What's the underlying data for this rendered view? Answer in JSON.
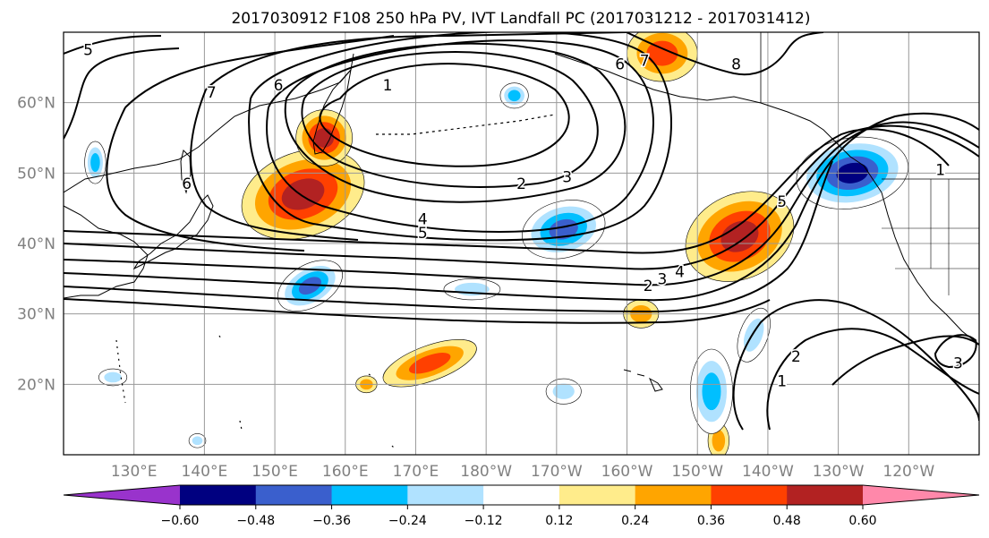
{
  "title": "2017030912 F108 250 hPa PV, IVT Landfall PC (2017031212 - 2017031412)",
  "map": {
    "lon_range": [
      120,
      250
    ],
    "lat_range": [
      10,
      70
    ],
    "lat_ticks": [
      {
        "lat": 20,
        "label": "20°N"
      },
      {
        "lat": 30,
        "label": "30°N"
      },
      {
        "lat": 40,
        "label": "40°N"
      },
      {
        "lat": 50,
        "label": "50°N"
      },
      {
        "lat": 60,
        "label": "60°N"
      }
    ],
    "lon_ticks": [
      {
        "lon": 130,
        "label": "130°E"
      },
      {
        "lon": 140,
        "label": "140°E"
      },
      {
        "lon": 150,
        "label": "150°E"
      },
      {
        "lon": 160,
        "label": "160°E"
      },
      {
        "lon": 170,
        "label": "170°E"
      },
      {
        "lon": 180,
        "label": "180°W"
      },
      {
        "lon": 190,
        "label": "170°W"
      },
      {
        "lon": 200,
        "label": "160°W"
      },
      {
        "lon": 210,
        "label": "150°W"
      },
      {
        "lon": 220,
        "label": "140°W"
      },
      {
        "lon": 230,
        "label": "130°W"
      },
      {
        "lon": 240,
        "label": "120°W"
      }
    ],
    "gridlines": true,
    "pv_contour_labels": [
      {
        "value": "5",
        "lon": 123.5,
        "lat": 67.5
      },
      {
        "value": "7",
        "lon": 141,
        "lat": 61.5
      },
      {
        "value": "6",
        "lon": 150.5,
        "lat": 62.5
      },
      {
        "value": "1",
        "lon": 166,
        "lat": 62.5
      },
      {
        "value": "6",
        "lon": 137.5,
        "lat": 48.5
      },
      {
        "value": "2",
        "lon": 185,
        "lat": 48.5
      },
      {
        "value": "3",
        "lon": 191.5,
        "lat": 49.5
      },
      {
        "value": "4",
        "lon": 171,
        "lat": 43.5
      },
      {
        "value": "5",
        "lon": 171,
        "lat": 41.5
      },
      {
        "value": "6",
        "lon": 199,
        "lat": 65.5
      },
      {
        "value": "7",
        "lon": 202.5,
        "lat": 66
      },
      {
        "value": "8",
        "lon": 215.5,
        "lat": 65.5
      },
      {
        "value": "5",
        "lon": 222,
        "lat": 46
      },
      {
        "value": "2",
        "lon": 203,
        "lat": 34
      },
      {
        "value": "3",
        "lon": 205,
        "lat": 35
      },
      {
        "value": "4",
        "lon": 207.5,
        "lat": 36
      },
      {
        "value": "2",
        "lon": 224,
        "lat": 24
      },
      {
        "value": "1",
        "lon": 222,
        "lat": 20.5
      },
      {
        "value": "1",
        "lon": 244.5,
        "lat": 50.5
      },
      {
        "value": "3",
        "lon": 247,
        "lat": 23
      }
    ],
    "ivt_anomalies": [
      {
        "lon": 154,
        "lat": 47,
        "rx": 9,
        "ry": 6,
        "rot": -20,
        "level": 0.48
      },
      {
        "lon": 157,
        "lat": 55,
        "rx": 4,
        "ry": 4,
        "rot": 0,
        "level": 0.48
      },
      {
        "lon": 216,
        "lat": 41,
        "rx": 8,
        "ry": 6,
        "rot": -25,
        "level": 0.48
      },
      {
        "lon": 205,
        "lat": 67,
        "rx": 5,
        "ry": 4,
        "rot": 0,
        "level": 0.36
      },
      {
        "lon": 172,
        "lat": 23,
        "rx": 7,
        "ry": 2.5,
        "rot": -20,
        "level": 0.36
      },
      {
        "lon": 202,
        "lat": 30,
        "rx": 2.5,
        "ry": 2,
        "rot": 0,
        "level": 0.24
      },
      {
        "lon": 163,
        "lat": 20,
        "rx": 1.5,
        "ry": 1.2,
        "rot": 0,
        "level": 0.24
      },
      {
        "lon": 213,
        "lat": 12,
        "rx": 1.5,
        "ry": 2.5,
        "rot": 0,
        "level": 0.24
      },
      {
        "lon": 232,
        "lat": 50,
        "rx": 8,
        "ry": 5,
        "rot": -10,
        "level": -0.6
      },
      {
        "lon": 191,
        "lat": 42,
        "rx": 6,
        "ry": 4,
        "rot": -15,
        "level": -0.48
      },
      {
        "lon": 155,
        "lat": 34,
        "rx": 5,
        "ry": 3,
        "rot": -30,
        "level": -0.48
      },
      {
        "lon": 124.5,
        "lat": 51.5,
        "rx": 1.5,
        "ry": 3,
        "rot": 0,
        "level": -0.36
      },
      {
        "lon": 184,
        "lat": 61,
        "rx": 2,
        "ry": 1.8,
        "rot": 0,
        "level": -0.36
      },
      {
        "lon": 178,
        "lat": 33.5,
        "rx": 4,
        "ry": 1.5,
        "rot": 0,
        "level": -0.24
      },
      {
        "lon": 191,
        "lat": 19,
        "rx": 2.5,
        "ry": 1.8,
        "rot": 0,
        "level": -0.24
      },
      {
        "lon": 212,
        "lat": 19,
        "rx": 3,
        "ry": 6,
        "rot": 0,
        "level": -0.36
      },
      {
        "lon": 218,
        "lat": 27,
        "rx": 2,
        "ry": 4,
        "rot": 20,
        "level": -0.24
      },
      {
        "lon": 127,
        "lat": 21,
        "rx": 2,
        "ry": 1.2,
        "rot": 0,
        "level": -0.24
      },
      {
        "lon": 139,
        "lat": 12,
        "rx": 1.2,
        "ry": 1,
        "rot": 0,
        "level": -0.24
      }
    ]
  },
  "colorbar": {
    "tick_labels": [
      "−0.60",
      "−0.48",
      "−0.36",
      "−0.24",
      "−0.12",
      "0.12",
      "0.24",
      "0.36",
      "0.48",
      "0.60"
    ],
    "colors": [
      "#9933cc",
      "#000080",
      "#3a5fcd",
      "#00bfff",
      "#b0e2ff",
      "#ffffff",
      "#ffec8b",
      "#ffa500",
      "#ff4000",
      "#b22222",
      "#ff88aa"
    ]
  }
}
